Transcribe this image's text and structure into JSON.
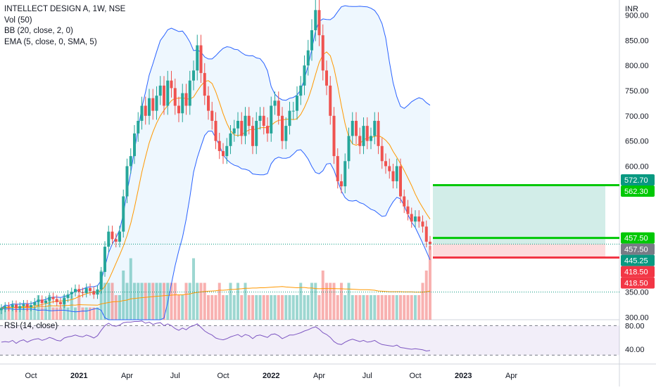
{
  "legend": {
    "title": "INTELLECT DESIGN A, 1W, NSE",
    "vol": "Vol (50)",
    "bb": "BB (20, close, 2, 0)",
    "ema": "EMA (5, close, 0, SMA, 5)"
  },
  "rsi_label": "RSI (14, close)",
  "currency": "INR",
  "chart_data": {
    "type": "candlestick",
    "title": "INTELLECT DESIGN A, 1W, NSE",
    "price_axis": {
      "ylim": [
        295,
        930
      ],
      "ticks": [
        {
          "v": 900,
          "label": "900.00"
        },
        {
          "v": 850,
          "label": "850.00"
        },
        {
          "v": 800,
          "label": "800.00"
        },
        {
          "v": 750,
          "label": "750.00"
        },
        {
          "v": 700,
          "label": "700.00"
        },
        {
          "v": 650,
          "label": "650.00"
        },
        {
          "v": 600,
          "label": "600.00"
        },
        {
          "v": 550,
          "label": "550.00"
        },
        {
          "v": 350,
          "label": "350.00"
        },
        {
          "v": 300,
          "label": "300.00"
        }
      ]
    },
    "rsi_axis": {
      "ylim": [
        15,
        90
      ],
      "ticks": [
        {
          "v": 80,
          "label": "80.00"
        },
        {
          "v": 40,
          "label": "40.00"
        }
      ],
      "band": [
        30,
        80
      ]
    },
    "time_axis": {
      "ticks": [
        {
          "i": 8,
          "label": "Oct",
          "bold": false
        },
        {
          "i": 21,
          "label": "2021",
          "bold": true
        },
        {
          "i": 34,
          "label": "Apr",
          "bold": false
        },
        {
          "i": 47,
          "label": "Jul",
          "bold": false
        },
        {
          "i": 60,
          "label": "Oct",
          "bold": false
        },
        {
          "i": 73,
          "label": "2022",
          "bold": true
        },
        {
          "i": 86,
          "label": "Apr",
          "bold": false
        },
        {
          "i": 99,
          "label": "Jul",
          "bold": false
        },
        {
          "i": 112,
          "label": "Oct",
          "bold": false
        },
        {
          "i": 125,
          "label": "2023",
          "bold": true
        },
        {
          "i": 138,
          "label": "Apr",
          "bold": false
        }
      ]
    },
    "closes": [
      318,
      322,
      320,
      325,
      318,
      322,
      326,
      320,
      324,
      330,
      335,
      328,
      333,
      340,
      336,
      330,
      326,
      338,
      345,
      350,
      356,
      350,
      348,
      358,
      352,
      345,
      355,
      390,
      440,
      470,
      455,
      450,
      470,
      540,
      600,
      620,
      665,
      690,
      720,
      700,
      735,
      710,
      740,
      760,
      720,
      770,
      755,
      720,
      705,
      745,
      720,
      770,
      790,
      840,
      785,
      740,
      710,
      690,
      650,
      630,
      620,
      640,
      665,
      675,
      690,
      660,
      700,
      680,
      640,
      690,
      700,
      680,
      665,
      720,
      730,
      700,
      650,
      680,
      710,
      710,
      740,
      760,
      800,
      830,
      870,
      910,
      860,
      790,
      760,
      700,
      620,
      570,
      560,
      610,
      660,
      690,
      660,
      640,
      680,
      650,
      660,
      690,
      640,
      610,
      600,
      590,
      570,
      600,
      540,
      520,
      505,
      490,
      500,
      490,
      480,
      450,
      445
    ],
    "volumes": [
      1,
      1,
      1,
      1,
      1,
      1,
      1,
      1,
      1,
      1,
      2,
      1,
      1,
      2,
      1,
      1,
      1,
      2,
      1,
      2,
      1,
      2,
      1,
      1,
      1,
      1,
      1,
      4,
      3,
      3,
      3,
      2,
      2,
      4,
      3,
      5,
      3,
      3,
      3,
      3,
      3,
      3,
      3,
      3,
      3,
      3,
      3,
      3,
      2,
      2,
      3,
      3,
      5,
      3,
      3,
      3,
      2,
      2,
      2,
      3,
      2,
      2,
      3,
      2,
      3,
      2,
      3,
      2,
      2,
      2,
      2,
      2,
      2,
      2,
      2,
      2,
      2,
      2,
      2,
      2,
      2,
      3,
      2,
      2,
      3,
      3,
      2,
      4,
      3,
      3,
      3,
      2,
      3,
      2,
      3,
      2,
      2,
      2,
      2,
      2,
      2,
      2,
      2,
      2,
      2,
      2,
      2,
      2,
      2,
      2,
      2,
      2,
      2,
      2,
      3,
      4,
      6
    ],
    "rsi": [
      52,
      53,
      52,
      55,
      50,
      54,
      56,
      52,
      55,
      57,
      58,
      55,
      57,
      60,
      58,
      55,
      54,
      59,
      61,
      62,
      64,
      62,
      61,
      64,
      62,
      59,
      63,
      72,
      80,
      84,
      80,
      79,
      81,
      85,
      86,
      86,
      87,
      87,
      88,
      84,
      86,
      82,
      84,
      85,
      80,
      83,
      80,
      75,
      72,
      76,
      73,
      78,
      80,
      83,
      77,
      71,
      67,
      64,
      59,
      57,
      56,
      58,
      61,
      63,
      65,
      61,
      65,
      63,
      58,
      63,
      64,
      62,
      60,
      65,
      66,
      63,
      58,
      61,
      64,
      64,
      66,
      68,
      71,
      73,
      76,
      78,
      74,
      68,
      65,
      60,
      53,
      49,
      48,
      52,
      55,
      57,
      55,
      53,
      55,
      52,
      53,
      55,
      51,
      48,
      47,
      46,
      45,
      47,
      43,
      42,
      41,
      40,
      41,
      40,
      39,
      37,
      38
    ],
    "rsi_current": 38,
    "price_labels": [
      {
        "v": 572.7,
        "label": "572.70",
        "color": "#089981"
      },
      {
        "v": 562.3,
        "label": "562.30",
        "color": "#00c805"
      },
      {
        "v": 457.5,
        "label": "457.50",
        "color": "#00c805"
      },
      {
        "v": 457.5,
        "label": "457.50",
        "color": "#787b86"
      },
      {
        "v": 445.25,
        "label": "445.25",
        "color": "#089981"
      },
      {
        "v": 418.5,
        "label": "418.50",
        "color": "#f23645"
      },
      {
        "v": 418.5,
        "label": "418.50",
        "color": "#f23645"
      }
    ],
    "position": {
      "entry": 445.25,
      "target": 562.3,
      "stop": 418.5,
      "target_line_color": "#00c805",
      "stop_line_color": "#f23645"
    },
    "colors": {
      "up": "#26a69a",
      "down": "#ef5350",
      "bb": "#2962ff",
      "bb_fill": "#2196f3",
      "ema": "#ff9800",
      "vol_ma": "#ff9800",
      "rsi": "#7e57c2",
      "rsi_band": "#7e57c2"
    }
  }
}
